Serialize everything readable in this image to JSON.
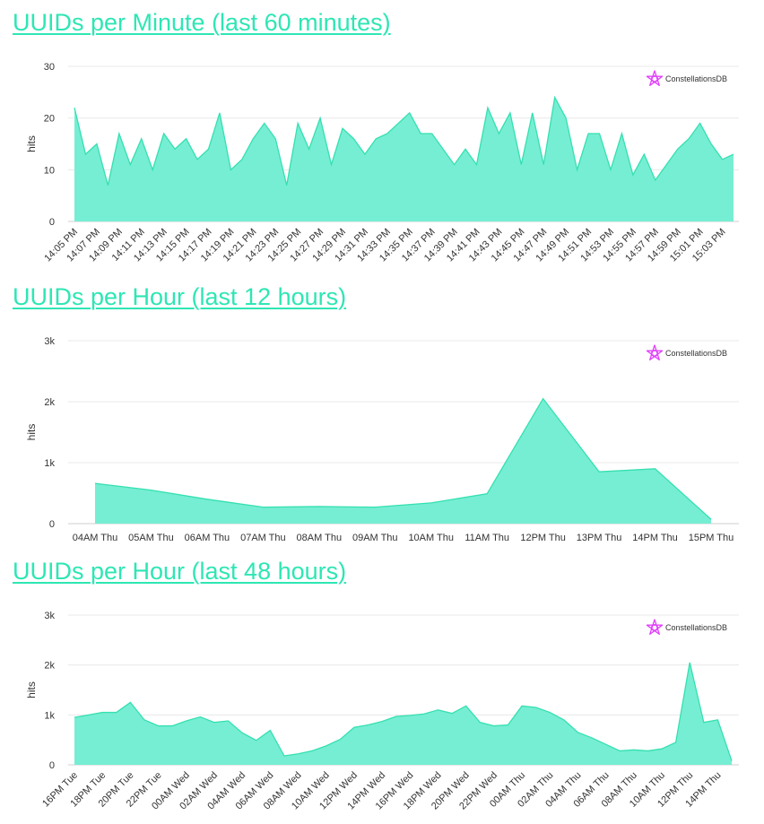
{
  "colors": {
    "title": "#2ee6b4",
    "area": "#76eed3",
    "line": "#34e0b0",
    "logo": "#e040fb"
  },
  "charts": [
    {
      "title": "UUIDs per Minute (last 60 minutes)",
      "logo": "ConstellationsDB",
      "logo_icon": "star-icon"
    },
    {
      "title": "UUIDs per Hour (last 12 hours)",
      "logo": "ConstellationsDB",
      "logo_icon": "star-icon"
    },
    {
      "title": "UUIDs per Hour (last 48 hours)",
      "logo": "ConstellationsDB",
      "logo_icon": "star-icon"
    }
  ],
  "chart_data": [
    {
      "type": "area",
      "title": "UUIDs per Minute (last 60 minutes)",
      "xlabel": "",
      "ylabel": "hits",
      "ylim": [
        0,
        30
      ],
      "yticks": [
        "0",
        "10",
        "20",
        "30"
      ],
      "ytick_values": [
        0,
        10,
        20,
        30
      ],
      "label_rotated": true,
      "tick_labels": [
        "14:05 PM",
        "14:07 PM",
        "14:09 PM",
        "14:11 PM",
        "14:13 PM",
        "14:15 PM",
        "14:17 PM",
        "14:19 PM",
        "14:21 PM",
        "14:23 PM",
        "14:25 PM",
        "14:27 PM",
        "14:29 PM",
        "14:31 PM",
        "14:33 PM",
        "14:35 PM",
        "14:37 PM",
        "14:39 PM",
        "14:41 PM",
        "14:43 PM",
        "14:45 PM",
        "14:47 PM",
        "14:49 PM",
        "14:51 PM",
        "14:53 PM",
        "14:55 PM",
        "14:57 PM",
        "14:59 PM",
        "15:01 PM",
        "15:03 PM"
      ],
      "tick_step": 2,
      "series": [
        {
          "name": "hits",
          "values": [
            22,
            13,
            15,
            7,
            17,
            11,
            16,
            10,
            17,
            14,
            16,
            12,
            14,
            21,
            10,
            12,
            16,
            19,
            16,
            7,
            19,
            14,
            20,
            11,
            18,
            16,
            13,
            16,
            17,
            19,
            21,
            17,
            17,
            14,
            11,
            14,
            11,
            22,
            17,
            21,
            11,
            21,
            11,
            24,
            20,
            10,
            17,
            17,
            10,
            17,
            9,
            13,
            8,
            11,
            14,
            16,
            19,
            15,
            12,
            13
          ]
        }
      ]
    },
    {
      "type": "area",
      "title": "UUIDs per Hour (last 12 hours)",
      "xlabel": "",
      "ylabel": "hits",
      "ylim": [
        0,
        3000
      ],
      "yticks": [
        "0",
        "1k",
        "2k",
        "3k"
      ],
      "ytick_values": [
        0,
        1000,
        2000,
        3000
      ],
      "label_rotated": false,
      "categories": [
        "04AM Thu",
        "05AM Thu",
        "06AM Thu",
        "07AM Thu",
        "08AM Thu",
        "09AM Thu",
        "10AM Thu",
        "11AM Thu",
        "12PM Thu",
        "13PM Thu",
        "14PM Thu",
        "15PM Thu"
      ],
      "series": [
        {
          "name": "hits",
          "values": [
            660,
            550,
            400,
            270,
            280,
            270,
            340,
            490,
            2050,
            850,
            900,
            70
          ]
        }
      ]
    },
    {
      "type": "area",
      "title": "UUIDs per Hour (last 48 hours)",
      "xlabel": "",
      "ylabel": "hits",
      "ylim": [
        0,
        3000
      ],
      "yticks": [
        "0",
        "1k",
        "2k",
        "3k"
      ],
      "ytick_values": [
        0,
        1000,
        2000,
        3000
      ],
      "label_rotated": true,
      "tick_labels": [
        "16PM Tue",
        "18PM Tue",
        "20PM Tue",
        "22PM Tue",
        "00AM Wed",
        "02AM Wed",
        "04AM Wed",
        "06AM Wed",
        "08AM Wed",
        "10AM Wed",
        "12PM Wed",
        "14PM Wed",
        "16PM Wed",
        "18PM Wed",
        "20PM Wed",
        "22PM Wed",
        "00AM Thu",
        "02AM Thu",
        "04AM Thu",
        "06AM Thu",
        "08AM Thu",
        "10AM Thu",
        "12PM Thu",
        "14PM Thu"
      ],
      "tick_step": 2,
      "series": [
        {
          "name": "hits",
          "values": [
            950,
            1000,
            1050,
            1050,
            1250,
            900,
            780,
            780,
            880,
            960,
            850,
            880,
            640,
            490,
            690,
            180,
            220,
            280,
            380,
            510,
            750,
            800,
            870,
            970,
            990,
            1020,
            1100,
            1030,
            1180,
            850,
            780,
            800,
            1180,
            1150,
            1050,
            900,
            650,
            540,
            410,
            280,
            300,
            280,
            320,
            450,
            2050,
            850,
            900,
            80
          ]
        }
      ]
    }
  ]
}
